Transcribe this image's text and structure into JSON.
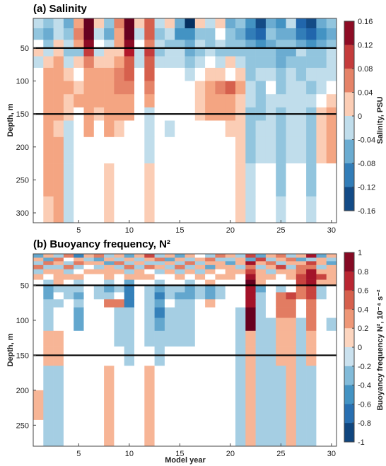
{
  "figure": {
    "xlabel": "Model year"
  },
  "chart_data": [
    {
      "type": "heatmap",
      "title": "(a) Salinity",
      "xlabel": "",
      "ylabel": "Depth, m",
      "colorbar_label": "Salinity, PSU",
      "colormap": "diverging blue-white-red",
      "xlim": [
        0.5,
        30.5
      ],
      "ylim": [
        315,
        5
      ],
      "y_reversed": true,
      "xticks": [
        5,
        10,
        15,
        20,
        25,
        30
      ],
      "yticks": [
        50,
        100,
        150,
        200,
        250,
        300
      ],
      "clim": [
        -0.16,
        0.16
      ],
      "cbar_ticks": [
        "0.16",
        "0.12",
        "0.08",
        "0.04",
        "0",
        "-0.04",
        "-0.08",
        "-0.12",
        "-0.16"
      ],
      "reference_lines_depth": [
        50,
        150
      ],
      "x": [
        1,
        2,
        3,
        4,
        5,
        6,
        7,
        8,
        9,
        10,
        11,
        12,
        13,
        14,
        15,
        16,
        17,
        18,
        19,
        20,
        21,
        22,
        23,
        24,
        25,
        26,
        27,
        28,
        29,
        30
      ],
      "y": [
        10,
        30,
        45,
        55,
        70,
        90,
        110,
        130,
        150,
        170,
        200,
        250,
        300
      ],
      "z": [
        [
          -0.02,
          -0.04,
          -0.02,
          -0.06,
          0.04,
          0.16,
          0.02,
          -0.04,
          0.06,
          0.16,
          0.02,
          0.08,
          -0.02,
          0.02,
          -0.06,
          -0.16,
          0.02,
          -0.02,
          0.02,
          -0.06,
          -0.04,
          -0.08,
          -0.14,
          -0.06,
          -0.08,
          -0.02,
          -0.12,
          -0.14,
          -0.06,
          -0.04
        ],
        [
          -0.04,
          -0.06,
          -0.02,
          -0.04,
          0.06,
          0.16,
          -0.02,
          -0.06,
          0.04,
          0.16,
          -0.02,
          0.08,
          -0.04,
          -0.02,
          -0.08,
          -0.08,
          -0.04,
          -0.04,
          0.0,
          -0.04,
          -0.06,
          -0.1,
          -0.12,
          -0.04,
          -0.06,
          -0.06,
          -0.1,
          -0.12,
          -0.08,
          -0.06
        ],
        [
          0.0,
          -0.04,
          0.02,
          -0.02,
          0.04,
          0.14,
          0.0,
          -0.02,
          0.04,
          0.14,
          0.0,
          0.06,
          -0.02,
          -0.04,
          -0.04,
          -0.06,
          -0.02,
          -0.04,
          -0.02,
          -0.04,
          -0.04,
          -0.06,
          -0.08,
          -0.06,
          -0.04,
          -0.04,
          -0.06,
          -0.08,
          -0.06,
          -0.04
        ],
        [
          0.02,
          -0.02,
          0.02,
          -0.04,
          -0.04,
          0.1,
          -0.02,
          0.02,
          0.02,
          0.12,
          -0.02,
          0.1,
          -0.04,
          -0.02,
          -0.02,
          -0.06,
          -0.04,
          -0.02,
          -0.04,
          -0.04,
          -0.04,
          -0.04,
          -0.04,
          -0.04,
          -0.06,
          -0.06,
          -0.02,
          -0.04,
          -0.04,
          -0.02
        ],
        [
          -0.02,
          0.02,
          0.04,
          -0.02,
          0.02,
          0.06,
          0.02,
          0.02,
          0.04,
          0.08,
          -0.02,
          0.08,
          -0.02,
          -0.02,
          -0.02,
          -0.04,
          -0.02,
          0.0,
          -0.02,
          0.02,
          -0.02,
          -0.04,
          -0.04,
          -0.04,
          -0.06,
          -0.04,
          -0.04,
          -0.04,
          -0.04,
          -0.02
        ],
        [
          0.0,
          0.04,
          0.04,
          0.02,
          0.0,
          0.04,
          0.04,
          0.04,
          0.06,
          0.08,
          0.0,
          0.08,
          0.0,
          0.0,
          0.0,
          -0.02,
          0.0,
          0.02,
          0.02,
          0.0,
          0.02,
          -0.04,
          -0.02,
          -0.02,
          -0.04,
          -0.02,
          -0.04,
          -0.02,
          -0.02,
          -0.02
        ],
        [
          0.0,
          0.04,
          0.04,
          0.04,
          0.02,
          0.04,
          0.04,
          0.04,
          0.06,
          0.06,
          0.0,
          0.06,
          0.0,
          0.0,
          0.0,
          0.0,
          0.02,
          0.04,
          0.06,
          0.08,
          0.04,
          -0.02,
          -0.04,
          0.0,
          -0.04,
          -0.02,
          -0.02,
          -0.04,
          -0.02,
          0.0
        ],
        [
          0.0,
          0.04,
          0.04,
          0.02,
          0.04,
          0.04,
          0.04,
          0.04,
          0.04,
          0.04,
          0.0,
          0.04,
          0.0,
          0.0,
          0.0,
          0.0,
          0.02,
          0.04,
          0.04,
          0.04,
          0.02,
          -0.02,
          -0.04,
          -0.02,
          -0.02,
          -0.02,
          -0.02,
          -0.02,
          0.0,
          0.02
        ],
        [
          0.0,
          0.04,
          0.04,
          0.02,
          0.0,
          0.04,
          0.02,
          0.04,
          0.04,
          0.04,
          0.0,
          -0.02,
          0.0,
          0.0,
          0.0,
          0.0,
          0.02,
          0.04,
          0.04,
          0.04,
          0.02,
          -0.04,
          -0.04,
          -0.02,
          -0.04,
          -0.02,
          -0.02,
          -0.04,
          0.02,
          0.04
        ],
        [
          0.0,
          0.04,
          0.02,
          -0.02,
          0.0,
          0.04,
          0.0,
          0.04,
          0.02,
          0.0,
          0.0,
          -0.02,
          0.0,
          -0.02,
          0.0,
          0.0,
          0.0,
          0.0,
          0.0,
          0.02,
          0.02,
          -0.04,
          -0.02,
          -0.02,
          -0.04,
          -0.02,
          -0.02,
          -0.04,
          0.02,
          0.04
        ],
        [
          0.0,
          0.04,
          0.04,
          -0.02,
          0.0,
          0.0,
          0.0,
          0.0,
          0.0,
          0.0,
          0.0,
          -0.02,
          0.0,
          0.0,
          0.0,
          0.0,
          0.0,
          0.0,
          0.0,
          0.0,
          0.02,
          -0.04,
          -0.02,
          -0.02,
          -0.04,
          -0.02,
          -0.02,
          -0.04,
          0.02,
          0.04
        ],
        [
          0.0,
          0.04,
          0.04,
          -0.02,
          0.0,
          0.0,
          0.0,
          0.02,
          0.0,
          0.0,
          0.0,
          0.02,
          0.0,
          0.0,
          0.0,
          0.0,
          0.0,
          0.0,
          0.0,
          0.0,
          0.02,
          -0.02,
          0.0,
          0.0,
          -0.04,
          0.0,
          0.0,
          -0.04,
          0.0,
          0.0
        ],
        [
          0.0,
          0.02,
          0.04,
          -0.02,
          0.0,
          0.0,
          0.0,
          0.02,
          0.0,
          0.0,
          0.0,
          0.02,
          0.0,
          0.0,
          0.0,
          0.0,
          0.0,
          0.0,
          0.0,
          0.0,
          0.02,
          -0.02,
          0.0,
          0.0,
          -0.02,
          0.0,
          0.0,
          -0.02,
          0.0,
          0.0
        ]
      ]
    },
    {
      "type": "heatmap",
      "title": "(b) Buoyancy frequency, N²",
      "xlabel": "Model year",
      "ylabel": "Depth, m",
      "colorbar_label": "Buoyancy frequency N², 10⁻⁴ s⁻²",
      "colormap": "diverging blue-white-red",
      "xlim": [
        0.5,
        30.5
      ],
      "ylim": [
        280,
        5
      ],
      "y_reversed": true,
      "xticks": [
        5,
        10,
        15,
        20,
        25,
        30
      ],
      "yticks": [
        50,
        100,
        150,
        200,
        250
      ],
      "clim": [
        -1,
        1
      ],
      "cbar_ticks": [
        "1",
        "0.8",
        "0.6",
        "0.4",
        "0.2",
        "0",
        "-0.2",
        "-0.4",
        "-0.6",
        "-0.8",
        "-1"
      ],
      "reference_lines_depth": [
        50,
        150
      ],
      "x": [
        1,
        2,
        3,
        4,
        5,
        6,
        7,
        8,
        9,
        10,
        11,
        12,
        13,
        14,
        15,
        16,
        17,
        18,
        19,
        20,
        21,
        22,
        23,
        24,
        25,
        26,
        27,
        28,
        29,
        30
      ],
      "y": [
        8,
        13,
        18,
        24,
        30,
        38,
        46,
        55,
        65,
        75,
        88,
        105,
        125,
        150,
        180,
        220,
        265
      ],
      "z": [
        [
          -0.4,
          0.2,
          -0.2,
          0.4,
          -0.6,
          0.2,
          0.4,
          -0.2,
          0.2,
          -0.4,
          0.2,
          0.6,
          -0.2,
          0.2,
          -0.4,
          0.2,
          0.0,
          -0.2,
          0.4,
          0.2,
          -0.2,
          0.6,
          -0.4,
          0.2,
          0.4,
          -0.2,
          0.2,
          0.8,
          -0.4,
          0.2
        ],
        [
          0.2,
          -0.4,
          0.4,
          0.0,
          0.2,
          -0.2,
          -0.4,
          0.2,
          -0.2,
          0.2,
          -0.2,
          0.2,
          0.4,
          -0.4,
          0.2,
          -0.2,
          0.2,
          0.4,
          -0.2,
          -0.2,
          0.2,
          -0.4,
          0.6,
          -0.2,
          0.2,
          0.4,
          -0.4,
          -0.2,
          0.2,
          -0.2
        ],
        [
          -0.2,
          0.4,
          0.2,
          -0.2,
          0.4,
          0.2,
          0.2,
          -0.4,
          0.4,
          -0.2,
          0.2,
          -0.2,
          -0.2,
          0.2,
          -0.2,
          0.4,
          -0.2,
          0.2,
          0.2,
          -0.4,
          0.2,
          0.8,
          0.2,
          0.4,
          -0.2,
          0.2,
          0.2,
          0.6,
          0.2,
          -0.4
        ],
        [
          0.4,
          -0.2,
          -0.2,
          0.4,
          -0.2,
          0.0,
          -0.2,
          0.2,
          -0.2,
          0.4,
          -0.2,
          0.4,
          0.2,
          -0.2,
          0.4,
          -0.2,
          0.2,
          -0.4,
          0.2,
          0.2,
          -0.2,
          0.4,
          -0.2,
          0.2,
          0.6,
          -0.2,
          0.4,
          0.4,
          -0.2,
          0.2
        ],
        [
          -0.2,
          0.2,
          0.2,
          -0.2,
          0.0,
          0.2,
          0.2,
          0.2,
          0.2,
          -0.2,
          0.2,
          0.0,
          -0.2,
          0.2,
          -0.2,
          0.2,
          -0.2,
          0.2,
          0.0,
          0.2,
          0.2,
          0.6,
          0.2,
          -0.2,
          0.2,
          0.2,
          0.4,
          0.8,
          0.2,
          0.2
        ],
        [
          0.2,
          0.0,
          0.2,
          0.2,
          0.2,
          0.0,
          0.0,
          0.2,
          0.0,
          0.2,
          0.2,
          0.2,
          0.0,
          0.0,
          0.2,
          0.0,
          0.2,
          0.0,
          0.2,
          0.2,
          0.0,
          0.8,
          0.2,
          0.2,
          0.0,
          0.2,
          0.6,
          0.8,
          0.6,
          0.2
        ],
        [
          0.0,
          -0.2,
          0.2,
          0.0,
          -0.2,
          0.0,
          0.0,
          -0.2,
          0.0,
          -0.4,
          0.0,
          0.0,
          -0.2,
          0.0,
          0.0,
          -0.2,
          0.0,
          0.2,
          0.0,
          0.0,
          0.0,
          1.0,
          0.2,
          0.0,
          0.0,
          0.0,
          0.6,
          0.8,
          0.2,
          0.2
        ],
        [
          0.0,
          -0.4,
          -0.2,
          -0.2,
          -0.2,
          0.0,
          -0.2,
          -0.4,
          -0.2,
          -0.6,
          0.0,
          -0.2,
          -0.4,
          -0.2,
          -0.2,
          -0.4,
          -0.2,
          -0.4,
          -0.2,
          0.0,
          0.0,
          0.8,
          -0.4,
          0.0,
          -0.2,
          0.0,
          0.4,
          0.6,
          -0.2,
          0.0
        ],
        [
          0.0,
          -0.4,
          0.0,
          -0.2,
          -0.4,
          0.0,
          -0.2,
          -0.2,
          0.0,
          -0.6,
          0.0,
          -0.2,
          -0.6,
          -0.2,
          -0.4,
          -0.4,
          -0.2,
          -0.4,
          -0.2,
          0.0,
          0.0,
          0.8,
          -0.2,
          0.0,
          0.4,
          0.6,
          0.4,
          0.6,
          -0.2,
          0.0
        ],
        [
          0.0,
          -0.2,
          -0.2,
          0.0,
          -0.2,
          0.0,
          0.0,
          0.4,
          0.4,
          -0.6,
          0.0,
          -0.2,
          -0.4,
          0.0,
          -0.2,
          -0.2,
          0.0,
          0.2,
          0.0,
          0.0,
          0.0,
          0.8,
          -0.2,
          0.0,
          0.4,
          0.4,
          0.0,
          0.4,
          0.0,
          0.0
        ],
        [
          0.0,
          -0.2,
          0.0,
          0.0,
          -0.4,
          0.0,
          0.0,
          0.0,
          -0.2,
          -0.2,
          0.0,
          -0.2,
          -0.6,
          -0.2,
          -0.2,
          -0.2,
          0.0,
          0.0,
          0.0,
          0.0,
          -0.2,
          1.0,
          -0.2,
          0.0,
          0.4,
          0.4,
          0.0,
          0.4,
          0.0,
          0.0
        ],
        [
          0.0,
          -0.2,
          0.0,
          0.0,
          -0.4,
          0.0,
          0.0,
          0.0,
          -0.2,
          -0.2,
          0.0,
          -0.2,
          -0.4,
          -0.2,
          -0.2,
          -0.2,
          0.0,
          0.0,
          0.0,
          0.0,
          -0.2,
          1.0,
          -0.2,
          -0.2,
          0.2,
          0.2,
          -0.2,
          0.4,
          0.0,
          -0.2
        ],
        [
          0.0,
          0.2,
          0.2,
          0.0,
          0.0,
          0.0,
          0.0,
          0.0,
          -0.2,
          -0.2,
          0.0,
          -0.2,
          -0.2,
          -0.2,
          -0.2,
          -0.2,
          0.0,
          0.0,
          0.0,
          0.0,
          -0.2,
          0.2,
          -0.2,
          -0.2,
          0.2,
          0.2,
          -0.2,
          0.2,
          0.0,
          0.0
        ],
        [
          0.0,
          0.2,
          0.2,
          0.0,
          0.0,
          0.0,
          0.0,
          0.0,
          0.0,
          -0.2,
          0.0,
          0.0,
          -0.2,
          0.0,
          0.0,
          0.0,
          0.0,
          0.0,
          0.0,
          0.0,
          -0.2,
          0.2,
          -0.2,
          -0.2,
          0.2,
          0.2,
          -0.2,
          0.2,
          0.0,
          0.0
        ],
        [
          0.0,
          -0.2,
          -0.2,
          0.0,
          0.0,
          0.0,
          0.0,
          0.2,
          0.0,
          0.0,
          0.0,
          0.2,
          0.0,
          0.0,
          0.0,
          0.0,
          0.0,
          0.0,
          0.0,
          0.0,
          -0.2,
          0.2,
          -0.2,
          -0.2,
          -0.2,
          0.2,
          -0.2,
          -0.2,
          0.0,
          0.0
        ],
        [
          0.2,
          -0.2,
          -0.2,
          0.0,
          0.0,
          0.0,
          0.0,
          0.2,
          0.0,
          0.0,
          0.0,
          0.2,
          0.0,
          0.0,
          0.0,
          0.0,
          0.0,
          0.0,
          0.0,
          0.0,
          -0.2,
          0.2,
          -0.2,
          -0.2,
          -0.2,
          0.2,
          -0.2,
          -0.2,
          0.0,
          0.0
        ],
        [
          0.0,
          -0.2,
          -0.2,
          0.0,
          0.0,
          0.0,
          0.0,
          0.2,
          0.0,
          0.0,
          0.0,
          0.2,
          0.0,
          0.0,
          0.0,
          0.0,
          0.0,
          0.0,
          0.0,
          0.0,
          -0.2,
          0.2,
          -0.2,
          -0.2,
          -0.2,
          0.2,
          -0.2,
          -0.2,
          0.0,
          0.0
        ]
      ]
    }
  ],
  "colors": {
    "negative_extreme": "#053061",
    "positive_extreme": "#67001f",
    "center": "#ffffff",
    "reference_line": "#000000"
  }
}
